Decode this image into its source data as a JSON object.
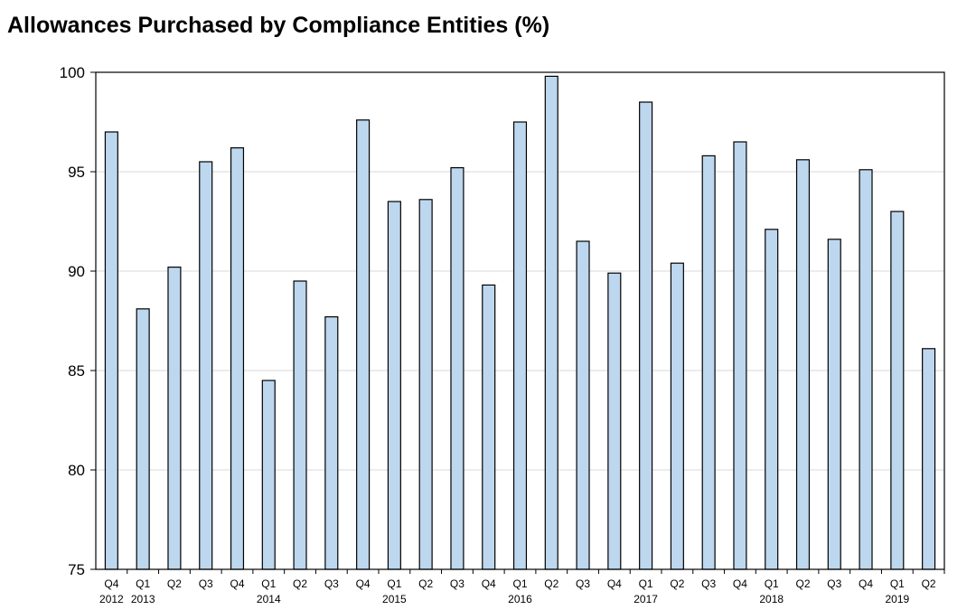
{
  "chart_data": {
    "type": "bar",
    "title": "Allowances Purchased by Compliance Entities (%)",
    "xlabel": "",
    "ylabel": "",
    "ylim": [
      75,
      100
    ],
    "yticks": [
      75,
      80,
      85,
      90,
      95,
      100
    ],
    "grid": true,
    "categories": [
      {
        "q": "Q4",
        "year": "2012"
      },
      {
        "q": "Q1",
        "year": "2013"
      },
      {
        "q": "Q2",
        "year": ""
      },
      {
        "q": "Q3",
        "year": ""
      },
      {
        "q": "Q4",
        "year": ""
      },
      {
        "q": "Q1",
        "year": "2014"
      },
      {
        "q": "Q2",
        "year": ""
      },
      {
        "q": "Q3",
        "year": ""
      },
      {
        "q": "Q4",
        "year": ""
      },
      {
        "q": "Q1",
        "year": "2015"
      },
      {
        "q": "Q2",
        "year": ""
      },
      {
        "q": "Q3",
        "year": ""
      },
      {
        "q": "Q4",
        "year": ""
      },
      {
        "q": "Q1",
        "year": "2016"
      },
      {
        "q": "Q2",
        "year": ""
      },
      {
        "q": "Q3",
        "year": ""
      },
      {
        "q": "Q4",
        "year": ""
      },
      {
        "q": "Q1",
        "year": "2017"
      },
      {
        "q": "Q2",
        "year": ""
      },
      {
        "q": "Q3",
        "year": ""
      },
      {
        "q": "Q4",
        "year": ""
      },
      {
        "q": "Q1",
        "year": "2018"
      },
      {
        "q": "Q2",
        "year": ""
      },
      {
        "q": "Q3",
        "year": ""
      },
      {
        "q": "Q4",
        "year": ""
      },
      {
        "q": "Q1",
        "year": "2019"
      },
      {
        "q": "Q2",
        "year": ""
      }
    ],
    "values": [
      97.0,
      88.1,
      90.2,
      95.5,
      96.2,
      84.5,
      89.5,
      87.7,
      97.6,
      93.5,
      93.6,
      95.2,
      89.3,
      97.5,
      99.8,
      91.5,
      89.9,
      98.5,
      90.4,
      95.8,
      96.5,
      92.1,
      95.6,
      91.6,
      95.1,
      93.0,
      86.1
    ],
    "colors": {
      "bar_fill": "#bdd7ee",
      "bar_stroke": "#000000",
      "grid": "#d9d9d9"
    }
  }
}
